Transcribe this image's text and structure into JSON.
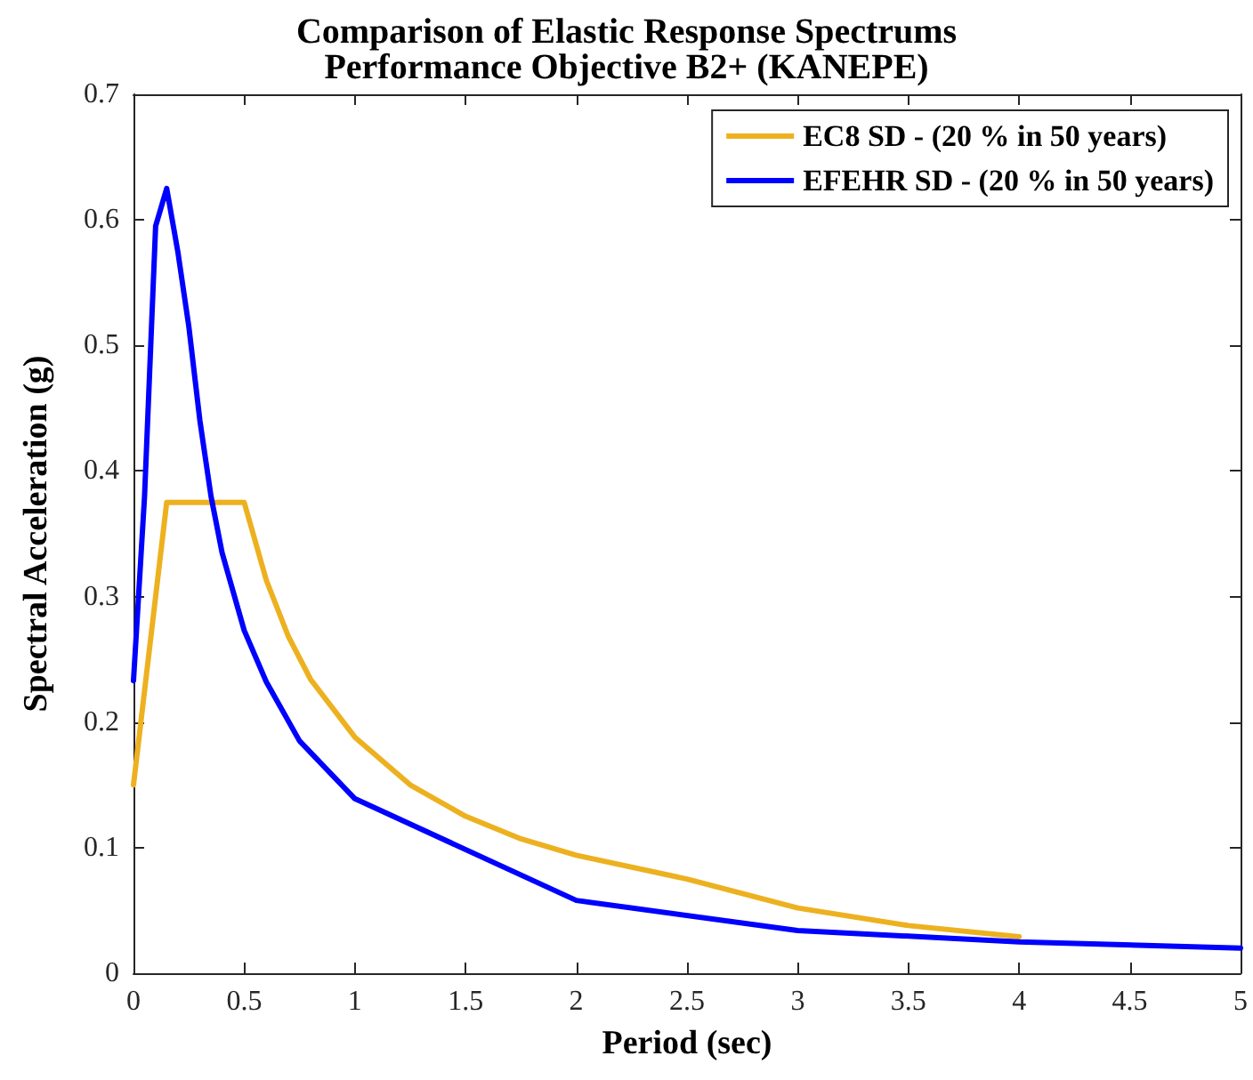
{
  "chart_data": {
    "type": "line",
    "title": "Comparison of Elastic Response Spectrums",
    "subtitle": "Performance Objective B2+ (KANEPE)",
    "xlabel": "Period (sec)",
    "ylabel": "Spectral Acceleration (g)",
    "xlim": [
      0,
      5
    ],
    "xticks": [
      0,
      0.5,
      1,
      1.5,
      2,
      2.5,
      3,
      3.5,
      4,
      4.5,
      5
    ],
    "ylim": [
      0,
      0.7
    ],
    "yticks": [
      0,
      0.1,
      0.2,
      0.3,
      0.4,
      0.5,
      0.6,
      0.7
    ],
    "grid": false,
    "legend": "top right",
    "marker": "none",
    "line_style": "solid",
    "series": [
      {
        "name": "EC8 SD - (20 % in 50 years)",
        "color": "#edb120",
        "x": [
          0,
          0.15,
          0.5,
          0.6,
          0.7,
          0.8,
          1,
          1.25,
          1.5,
          1.75,
          2,
          2.5,
          3,
          3.5,
          4
        ],
        "values": [
          0.15,
          0.375,
          0.375,
          0.313,
          0.268,
          0.234,
          0.188,
          0.15,
          0.125,
          0.107,
          0.094,
          0.075,
          0.052,
          0.038,
          0.029
        ]
      },
      {
        "name": "EFEHR SD - (20 % in 50 years)",
        "color": "#0000ff",
        "x": [
          0,
          0.05,
          0.1,
          0.15,
          0.2,
          0.25,
          0.3,
          0.35,
          0.4,
          0.5,
          0.6,
          0.75,
          1,
          2,
          3,
          4,
          5
        ],
        "values": [
          0.233,
          0.38,
          0.595,
          0.625,
          0.575,
          0.515,
          0.44,
          0.38,
          0.335,
          0.273,
          0.232,
          0.185,
          0.139,
          0.058,
          0.034,
          0.025,
          0.02
        ]
      }
    ]
  }
}
